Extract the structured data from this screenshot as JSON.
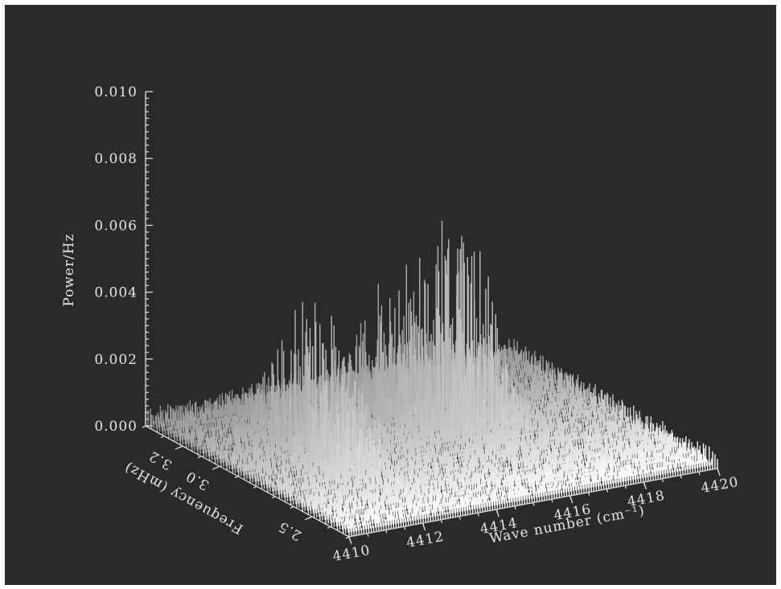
{
  "chart_data": {
    "type": "surface-3d",
    "title": "",
    "zlabel": "Power/Hz",
    "xlabel": "Wave number (cm⁻¹)",
    "ylabel": "Frequency (mHz)",
    "xlim": [
      4410,
      4420
    ],
    "ylim": [
      2.3,
      3.4
    ],
    "zlim": [
      0.0,
      0.01
    ],
    "x_ticks": [
      "4410",
      "4412",
      "4414",
      "4416",
      "4418",
      "4420"
    ],
    "y_ticks": [
      "2.5",
      "3.0",
      "3.2"
    ],
    "z_ticks": [
      "0.000",
      "0.002",
      "0.004",
      "0.006",
      "0.008",
      "0.010"
    ],
    "noise_level": 0.0006,
    "peaks": [
      {
        "x": 4412.8,
        "y": 3.05,
        "value": 0.0042,
        "width": 0.9
      },
      {
        "x": 4412.2,
        "y": 2.75,
        "value": 0.0016,
        "width": 0.6
      },
      {
        "x": 4416.4,
        "y": 3.0,
        "value": 0.0069,
        "width": 0.9
      },
      {
        "x": 4415.4,
        "y": 3.15,
        "value": 0.0035,
        "width": 0.7
      }
    ],
    "background_color": "#2a2a2a",
    "surface_color": "#f0f0f0"
  }
}
